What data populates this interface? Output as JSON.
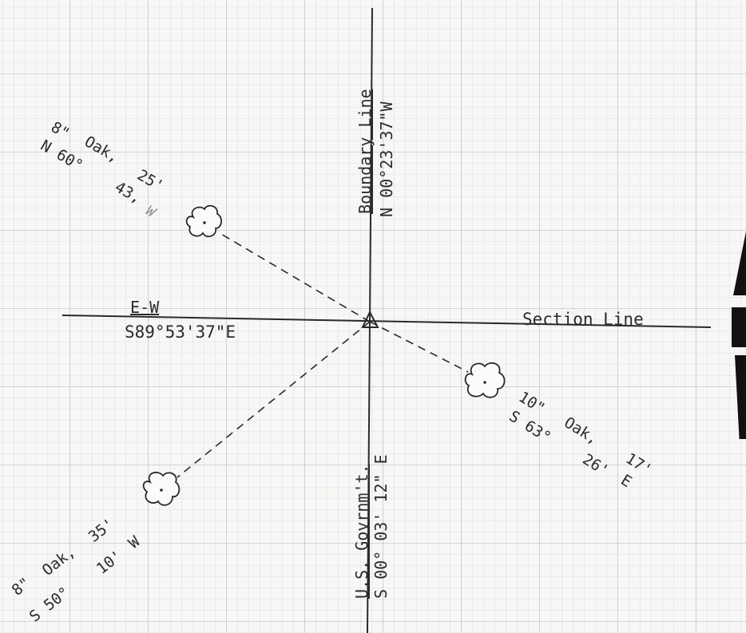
{
  "boundary": {
    "title": "Boundary Line",
    "bearing": "N 00°23'37\"W"
  },
  "section": {
    "title": "Section Line",
    "ew_label": "E-W",
    "ew_bearing": "S89°53'37\"E"
  },
  "govt_line": {
    "title": "U.S. Govrnm't.",
    "bearing": "S 00° 03' 12\" E"
  },
  "witness_trees": [
    {
      "size": "8\"",
      "species": "Oak,",
      "distance": "25'",
      "bearing_a": "N 60°",
      "bearing_b": "43,",
      "bearing_c": "W"
    },
    {
      "size": "10\"",
      "species": "Oak,",
      "distance": "17'",
      "bearing_a": "S 63°",
      "bearing_b": "26'",
      "bearing_c": "E"
    },
    {
      "size": "8\"",
      "species": "Oak,",
      "distance": "35'",
      "bearing_a": "S 50°",
      "bearing_b": "10'",
      "bearing_c": "W"
    }
  ],
  "colors": {
    "ink": "#2a2a2a",
    "paper": "#f7f7f5",
    "grid": "#9aa3ab"
  }
}
